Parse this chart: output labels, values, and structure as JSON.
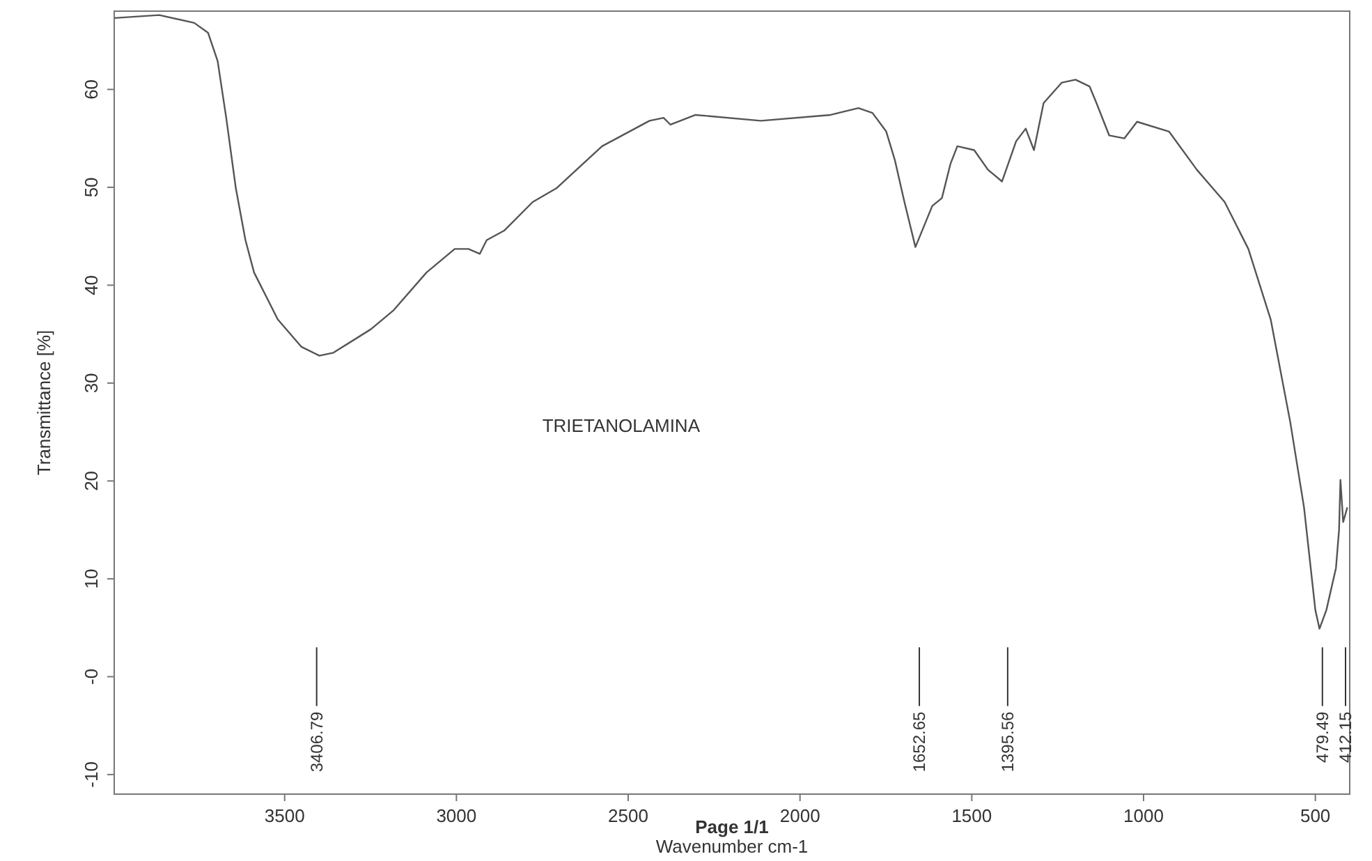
{
  "chart_data": {
    "type": "line",
    "xlabel": "Wavenumber cm-1",
    "ylabel": "Transmittance [%]",
    "xlim": [
      3996,
      400
    ],
    "xticks": [
      3500,
      3000,
      2500,
      2000,
      1500,
      1000,
      500
    ],
    "ylim": [
      -12,
      68
    ],
    "yticks": [
      -10,
      {
        "value": 0,
        "label": "-0"
      },
      10,
      20,
      30,
      40,
      50,
      60
    ],
    "grid": false,
    "marker": "none",
    "ref_lines": [
      {
        "axis": "x",
        "value": 3406.79,
        "label": "3406.79"
      },
      {
        "axis": "x",
        "value": 1652.65,
        "label": "1652.65"
      },
      {
        "axis": "x",
        "value": 1395.56,
        "label": "1395.56"
      },
      {
        "axis": "x",
        "value": 479.49,
        "label": "479.49"
      },
      {
        "axis": "x",
        "value": 412.15,
        "label": "412.15"
      }
    ],
    "line_style": "solid",
    "series": [
      {
        "color": "#555555",
        "x": [
          3995,
          3865,
          3763,
          3723,
          3695,
          3670,
          3642,
          3614,
          3589,
          3520,
          3451,
          3399,
          3358,
          3249,
          3184,
          3087,
          3005,
          2965,
          2932,
          2912,
          2860,
          2778,
          2709,
          2576,
          2438,
          2397,
          2377,
          2304,
          2114,
          1911,
          1830,
          1789,
          1749,
          1724,
          1696,
          1664,
          1615,
          1587,
          1562,
          1542,
          1493,
          1453,
          1412,
          1371,
          1343,
          1319,
          1291,
          1238,
          1198,
          1157,
          1137,
          1100,
          1056,
          1019,
          926,
          845,
          764,
          695,
          630,
          573,
          533,
          500,
          488,
          468,
          440,
          431,
          427,
          419,
          407
        ],
        "values": [
          67.3,
          67.6,
          66.8,
          65.8,
          62.9,
          57.1,
          49.9,
          44.6,
          41.3,
          36.5,
          33.7,
          32.8,
          33.1,
          35.5,
          37.4,
          41.3,
          43.7,
          43.7,
          43.2,
          44.6,
          45.6,
          48.5,
          49.9,
          54.2,
          56.8,
          57.1,
          56.4,
          57.4,
          56.8,
          57.4,
          58.1,
          57.6,
          55.7,
          52.8,
          48.5,
          43.9,
          48.1,
          48.9,
          52.4,
          54.2,
          53.8,
          51.8,
          50.6,
          54.7,
          56.0,
          53.8,
          58.6,
          60.7,
          61.0,
          60.3,
          58.6,
          55.3,
          55.0,
          56.7,
          55.7,
          51.8,
          48.5,
          43.7,
          36.5,
          26.0,
          17.3,
          6.8,
          4.9,
          6.8,
          11.1,
          15.0,
          20.1,
          15.8,
          17.3
        ]
      }
    ],
    "annotations": [
      "TRIETANOLAMINA",
      "Page 1/1"
    ]
  }
}
